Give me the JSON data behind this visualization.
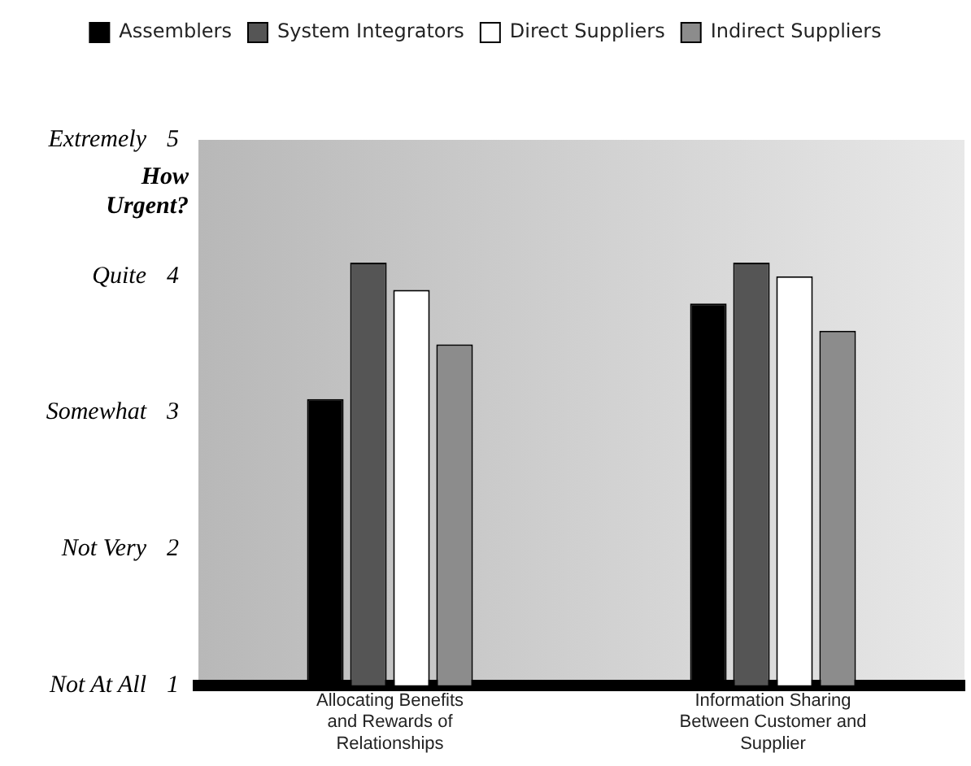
{
  "chart_data": {
    "type": "bar",
    "ylabel": "How Urgent?",
    "categories": [
      "Allocating Benefits and Rewards of Relationships",
      "Information Sharing Between Customer and Supplier"
    ],
    "series": [
      {
        "name": "Assemblers",
        "color": "#000000",
        "values": [
          3.1,
          3.8
        ]
      },
      {
        "name": "System Integrators",
        "color": "#555555",
        "values": [
          4.1,
          4.1
        ]
      },
      {
        "name": "Direct Suppliers",
        "color": "#ffffff",
        "values": [
          3.9,
          4.0
        ]
      },
      {
        "name": "Indirect Suppliers",
        "color": "#8c8c8c",
        "values": [
          3.5,
          3.6
        ]
      }
    ],
    "ylim": [
      1,
      5
    ],
    "yticks": [
      1,
      2,
      3,
      4,
      5
    ],
    "annotations": [
      "Extremely",
      "Quite",
      "Somewhat",
      "Not Very",
      "Not At All"
    ],
    "grid": false,
    "legend": "top"
  }
}
